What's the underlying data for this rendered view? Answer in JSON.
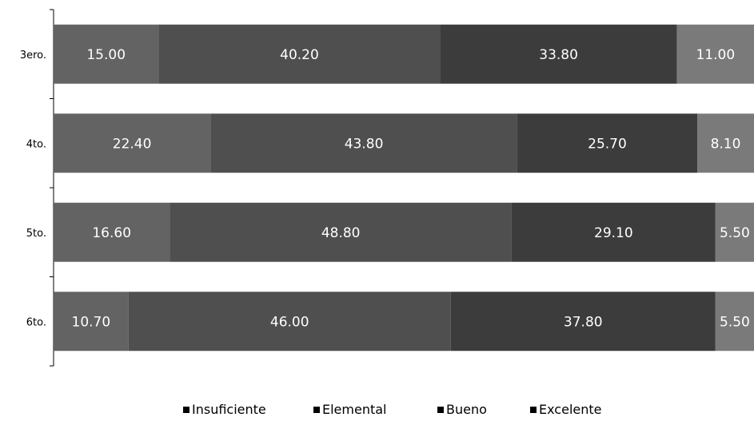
{
  "chart_data": {
    "type": "bar",
    "orientation": "horizontal",
    "stacked": true,
    "categories": [
      "3ero.",
      "4to.",
      "5to.",
      "6to."
    ],
    "series": [
      {
        "name": "Insuficiente",
        "values": [
          15.0,
          22.4,
          16.6,
          10.7
        ],
        "color": "#636363"
      },
      {
        "name": "Elemental",
        "values": [
          40.2,
          43.8,
          48.8,
          46.0
        ],
        "color": "#4f4f4f"
      },
      {
        "name": "Bueno",
        "values": [
          33.8,
          25.7,
          29.1,
          37.8
        ],
        "color": "#3c3c3c"
      },
      {
        "name": "Excelente",
        "values": [
          11.0,
          8.1,
          5.5,
          5.5
        ],
        "color": "#7a7a7a"
      }
    ],
    "data_labels": [
      [
        "15.00",
        "22.40",
        "16.60",
        "10.70"
      ],
      [
        "40.20",
        "43.80",
        "48.80",
        "46.00"
      ],
      [
        "33.80",
        "25.70",
        "29.10",
        "37.80"
      ],
      [
        "11.00",
        "8.10",
        "5.50",
        "5.50"
      ]
    ],
    "xlim": [
      0,
      100
    ],
    "legend_position": "bottom",
    "grid": false
  }
}
